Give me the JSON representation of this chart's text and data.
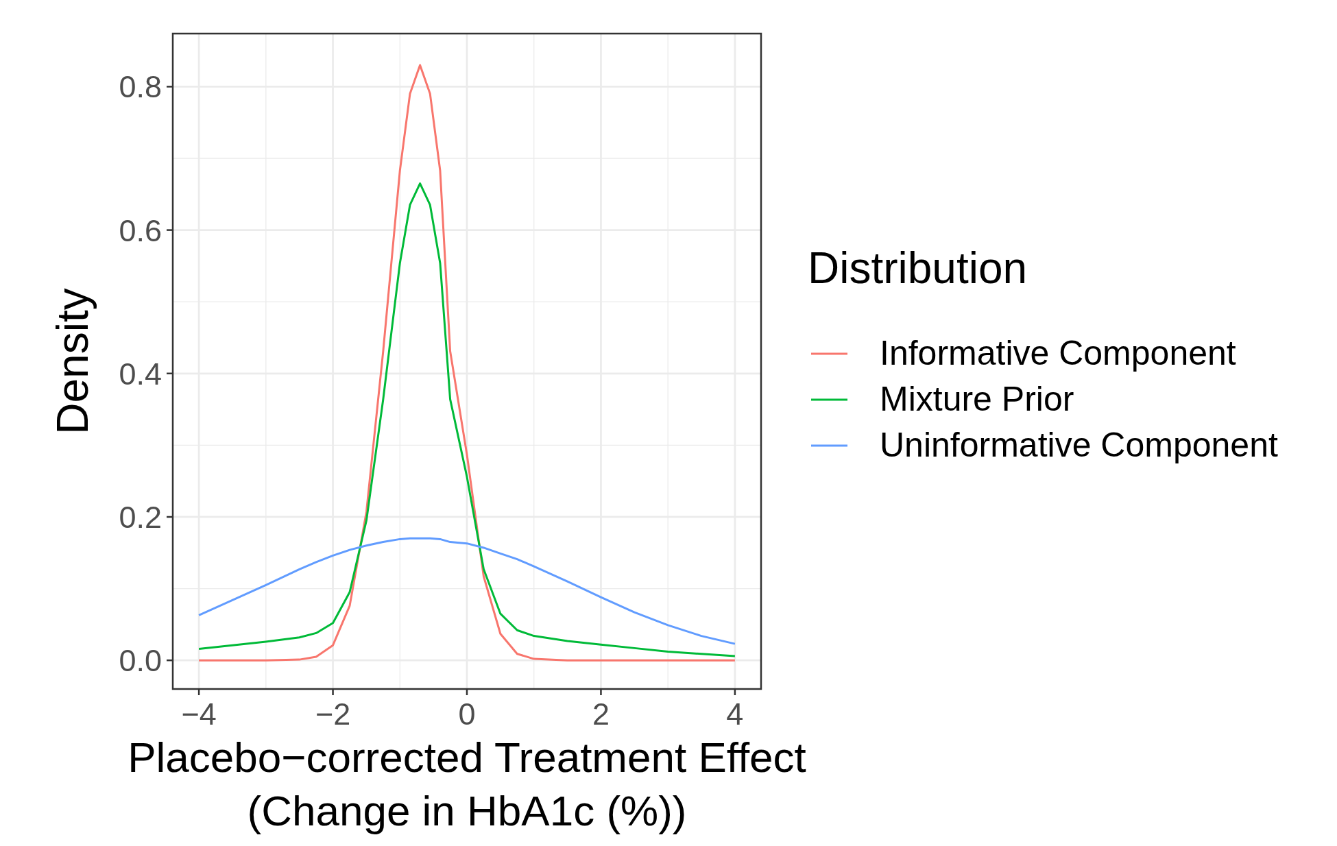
{
  "chart_data": {
    "type": "line",
    "xlabel": "Placebo−corrected Treatment Effect\n(Change in HbA1c (%))",
    "ylabel": "Density",
    "legend_title": "Distribution",
    "legend": "right",
    "grid": true,
    "line_style": "solid",
    "x": [
      -4,
      -3.5,
      -3,
      -2.5,
      -2.25,
      -2,
      -1.75,
      -1.5,
      -1.25,
      -1,
      -0.85,
      -0.7,
      -0.55,
      -0.4,
      -0.25,
      0,
      0.25,
      0.5,
      0.75,
      1,
      1.5,
      2,
      2.5,
      3,
      3.5,
      4
    ],
    "xlim": [
      -4.39,
      4.39
    ],
    "xticks": [
      {
        "value": -4,
        "label": "−4"
      },
      {
        "value": -2,
        "label": "−2"
      },
      0,
      2,
      4
    ],
    "ylim": [
      -0.04,
      0.874
    ],
    "yticks": [
      {
        "value": 0,
        "label": "0.0"
      },
      0.2,
      0.4,
      0.6,
      0.8
    ],
    "series": [
      {
        "name": "Informative Component",
        "color": "#f8766d",
        "values": [
          0,
          0,
          0,
          0.001,
          0.005,
          0.021,
          0.076,
          0.207,
          0.431,
          0.683,
          0.79,
          0.83,
          0.79,
          0.683,
          0.431,
          0.287,
          0.117,
          0.037,
          0.009,
          0.002,
          0,
          0,
          0,
          0,
          0,
          0
        ]
      },
      {
        "name": "Mixture Prior",
        "color": "#00ba38",
        "values": [
          0.016,
          0.021,
          0.026,
          0.032,
          0.038,
          0.052,
          0.095,
          0.195,
          0.364,
          0.554,
          0.635,
          0.665,
          0.635,
          0.554,
          0.364,
          0.256,
          0.127,
          0.065,
          0.042,
          0.034,
          0.027,
          0.022,
          0.017,
          0.012,
          0.009,
          0.006
        ]
      },
      {
        "name": "Uninformative Component",
        "color": "#619cff",
        "values": [
          0.063,
          0.084,
          0.105,
          0.127,
          0.137,
          0.146,
          0.154,
          0.16,
          0.165,
          0.169,
          0.17,
          0.17,
          0.17,
          0.169,
          0.165,
          0.163,
          0.157,
          0.149,
          0.141,
          0.131,
          0.11,
          0.088,
          0.067,
          0.049,
          0.034,
          0.023
        ]
      }
    ]
  }
}
